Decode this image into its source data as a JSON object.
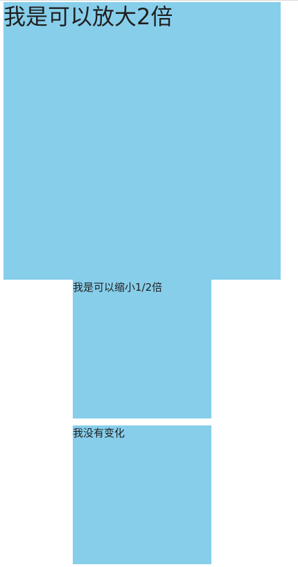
{
  "boxes": {
    "scale_up": {
      "label": "我是可以放大2倍"
    },
    "scale_down": {
      "label": "我是可以缩小1/2倍"
    },
    "unchanged": {
      "label": "我没有变化"
    }
  },
  "colors": {
    "box_background": "#87ceeb",
    "page_background": "#ffffff"
  }
}
